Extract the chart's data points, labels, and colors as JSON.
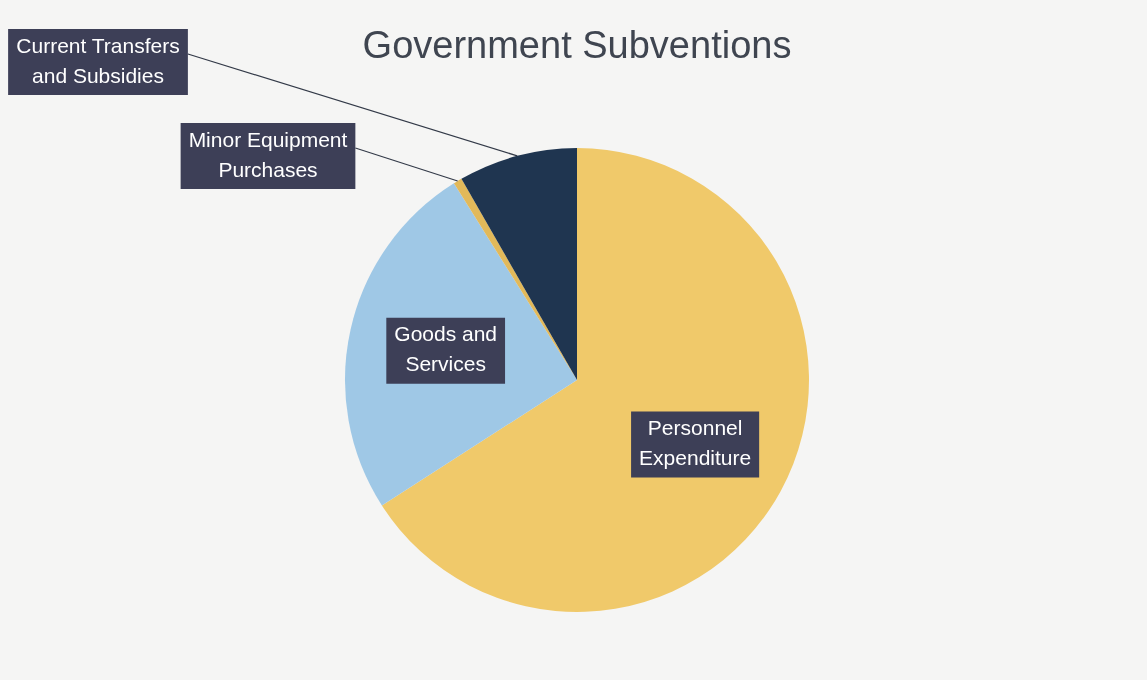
{
  "chart_data": {
    "type": "pie",
    "title": "Government Subventions",
    "categories": [
      "Personnel Expenditure",
      "Goods and Services",
      "Minor Equipment Purchases",
      "Current Transfers and Subsidies"
    ],
    "values": [
      65.9,
      25.2,
      0.6,
      8.3
    ],
    "colors": [
      "#f0c96a",
      "#9fc8e6",
      "#e2b95a",
      "#1f3550"
    ]
  }
}
